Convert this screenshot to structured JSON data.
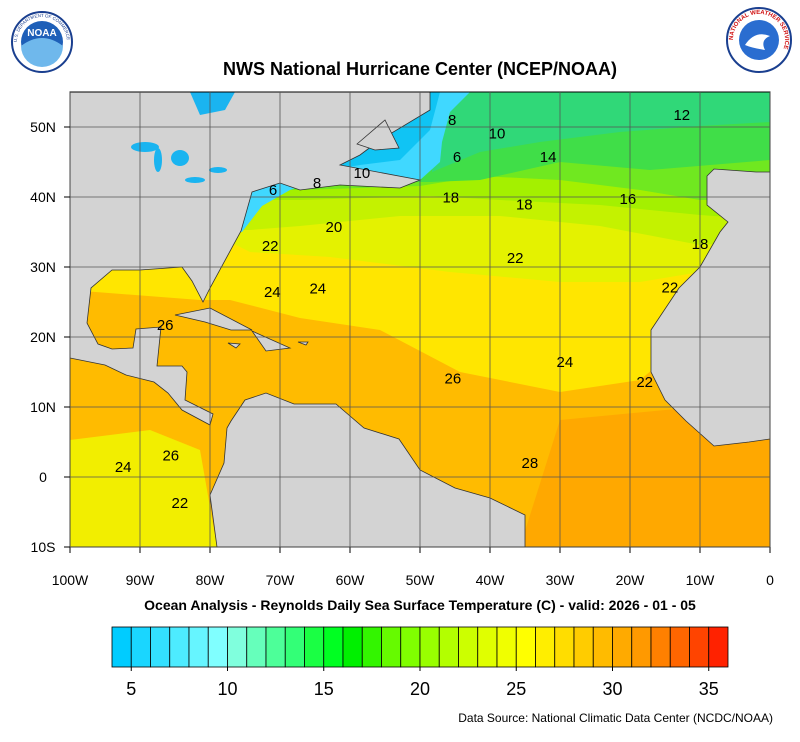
{
  "header": {
    "title": "NWS National Hurricane Center (NCEP/NOAA)",
    "left_logo": "NOAA",
    "left_logo_ring": "U.S. DEPARTMENT OF COMMERCE",
    "right_logo_ring": "NATIONAL WEATHER SERVICE"
  },
  "map": {
    "xlim": [
      -100,
      0
    ],
    "ylim": [
      -10,
      55
    ],
    "grid": true,
    "xticks": [
      {
        "value": -100,
        "label": "100W"
      },
      {
        "value": -90,
        "label": "90W"
      },
      {
        "value": -80,
        "label": "80W"
      },
      {
        "value": -70,
        "label": "70W"
      },
      {
        "value": -60,
        "label": "60W"
      },
      {
        "value": -50,
        "label": "50W"
      },
      {
        "value": -40,
        "label": "40W"
      },
      {
        "value": -30,
        "label": "30W"
      },
      {
        "value": -20,
        "label": "20W"
      },
      {
        "value": -10,
        "label": "10W"
      },
      0
    ],
    "yticks": [
      {
        "value": -10,
        "label": "10S"
      },
      0,
      {
        "value": 10,
        "label": "10N"
      },
      {
        "value": 20,
        "label": "20N"
      },
      {
        "value": 30,
        "label": "30N"
      },
      {
        "value": 40,
        "label": "40N"
      },
      {
        "value": 50,
        "label": "50N"
      }
    ],
    "contour_labels": [
      {
        "value": 8,
        "lon": -45.4,
        "lat": 51.0
      },
      {
        "value": 10,
        "lon": -39.0,
        "lat": 49.1
      },
      {
        "value": 12,
        "lon": -12.6,
        "lat": 51.7
      },
      {
        "value": 6,
        "lon": -44.7,
        "lat": 45.7
      },
      {
        "value": 14,
        "lon": -31.7,
        "lat": 45.7
      },
      {
        "value": 8,
        "lon": -64.7,
        "lat": 42.0
      },
      {
        "value": 10,
        "lon": -58.3,
        "lat": 43.4
      },
      {
        "value": 6,
        "lon": -71.0,
        "lat": 41.0
      },
      {
        "value": 18,
        "lon": -45.6,
        "lat": 39.9
      },
      {
        "value": 18,
        "lon": -35.1,
        "lat": 38.9
      },
      {
        "value": 16,
        "lon": -20.3,
        "lat": 39.7
      },
      {
        "value": 20,
        "lon": -62.3,
        "lat": 35.7
      },
      {
        "value": 22,
        "lon": -71.4,
        "lat": 33.0
      },
      {
        "value": 22,
        "lon": -36.4,
        "lat": 31.3
      },
      {
        "value": 18,
        "lon": -10.0,
        "lat": 33.3
      },
      {
        "value": 24,
        "lon": -71.1,
        "lat": 26.4
      },
      {
        "value": 24,
        "lon": -64.6,
        "lat": 26.9
      },
      {
        "value": 22,
        "lon": -14.3,
        "lat": 27.1
      },
      {
        "value": 26,
        "lon": -86.4,
        "lat": 21.7
      },
      {
        "value": 26,
        "lon": -45.3,
        "lat": 14.1
      },
      {
        "value": 24,
        "lon": -29.3,
        "lat": 16.4
      },
      {
        "value": 22,
        "lon": -17.9,
        "lat": 13.6
      },
      {
        "value": 24,
        "lon": -92.4,
        "lat": 1.4
      },
      {
        "value": 26,
        "lon": -85.6,
        "lat": 3.1
      },
      {
        "value": 22,
        "lon": -84.3,
        "lat": -3.7
      },
      {
        "value": 28,
        "lon": -34.3,
        "lat": 2.0
      }
    ]
  },
  "caption": "Ocean Analysis - Reynolds Daily Sea Surface Temperature (C) - valid: 2026 - 01 - 05",
  "colorbar": {
    "range": [
      4,
      36
    ],
    "colors": [
      "#00ccff",
      "#1ad6ff",
      "#33e0ff",
      "#4debff",
      "#66f5ff",
      "#80ffff",
      "#80ffdd",
      "#66ffbb",
      "#4dff99",
      "#33ff77",
      "#1aff44",
      "#00ff22",
      "#00f000",
      "#33f500",
      "#66fa00",
      "#80ff00",
      "#99ff00",
      "#b3ff00",
      "#ccff00",
      "#e0ff00",
      "#f0ff00",
      "#ffff00",
      "#ffee00",
      "#ffdd00",
      "#ffcc00",
      "#ffbb00",
      "#ffaa00",
      "#ff9900",
      "#ff8000",
      "#ff6600",
      "#ff4400",
      "#ff2200"
    ],
    "ticks": [
      5,
      10,
      15,
      20,
      25,
      30,
      35
    ]
  },
  "source": "Data Source: National Climatic Data Center (NCDC/NOAA)"
}
